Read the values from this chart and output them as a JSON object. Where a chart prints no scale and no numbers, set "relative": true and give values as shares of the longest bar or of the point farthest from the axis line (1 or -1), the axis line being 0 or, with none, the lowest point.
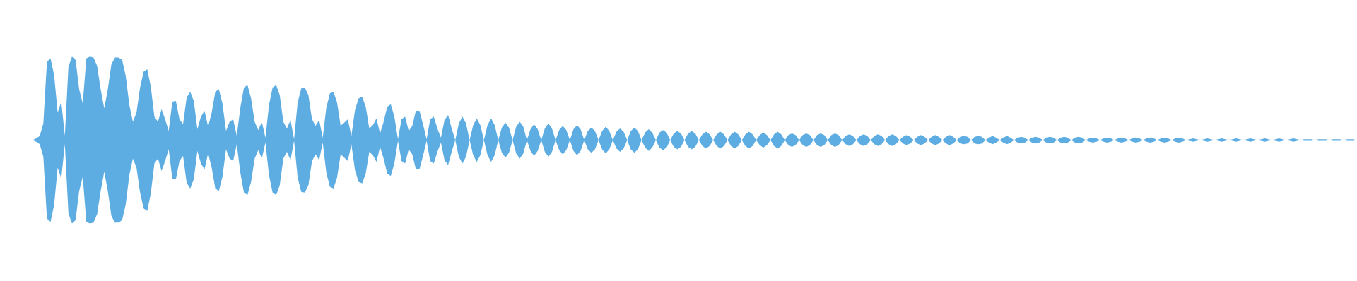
{
  "chart_data": {
    "type": "area",
    "relative": true,
    "categories": [
      null,
      null,
      null,
      null,
      null,
      null,
      null,
      null,
      null,
      null,
      null,
      null,
      null,
      null,
      null,
      null,
      null,
      null,
      null,
      null,
      null,
      null,
      null,
      null,
      null,
      null,
      null,
      null,
      null,
      null,
      null,
      null,
      null,
      null,
      null,
      null,
      null,
      null,
      null,
      null,
      null,
      null,
      null,
      null,
      null,
      null,
      null,
      null,
      null,
      null,
      null,
      null,
      null,
      null,
      null,
      null,
      null,
      null,
      null,
      null,
      null,
      null,
      null,
      null,
      null,
      null,
      null,
      null,
      null,
      null,
      null,
      null,
      null,
      null,
      null,
      null,
      null,
      null,
      null,
      null,
      null,
      null,
      null,
      null,
      null,
      null,
      null,
      null,
      null,
      null,
      null,
      null,
      null,
      null,
      null,
      null,
      null,
      null,
      null,
      null,
      null,
      null,
      null,
      null,
      null,
      null,
      null,
      null,
      null,
      null,
      null,
      null,
      null,
      null,
      null,
      null,
      null,
      null,
      null,
      null,
      null,
      null,
      null,
      null,
      null,
      null,
      null,
      null,
      null,
      null,
      null,
      null,
      null,
      null,
      null,
      null,
      null,
      null,
      null,
      null,
      null,
      null,
      null,
      null,
      null,
      null,
      null,
      null,
      null,
      null,
      null,
      null,
      null,
      null,
      null,
      null,
      null,
      null,
      null,
      null,
      null,
      null,
      null,
      null,
      null,
      null,
      null,
      null,
      null,
      null,
      null,
      null,
      null,
      null,
      null,
      null,
      null,
      null,
      null,
      null,
      null,
      null,
      null,
      null,
      null,
      null,
      null,
      null,
      null,
      null,
      null,
      null,
      null,
      null,
      null,
      null,
      null,
      null,
      null,
      null,
      null,
      null,
      null,
      null,
      null,
      null,
      null,
      null,
      null,
      null,
      null,
      null,
      null,
      null,
      null,
      null,
      null,
      null,
      null,
      null,
      null,
      null,
      null,
      null,
      null,
      null,
      null,
      null,
      null,
      null,
      null,
      null,
      null,
      null,
      null,
      null,
      null,
      null,
      null,
      null,
      null,
      null,
      null,
      null,
      null,
      null,
      null,
      null,
      null,
      null,
      null,
      null,
      null,
      null,
      null,
      null,
      null,
      null,
      null,
      null,
      null,
      null,
      null,
      null,
      null,
      null,
      null,
      null,
      null,
      null,
      null,
      null,
      null,
      null,
      null,
      null,
      null,
      null,
      null,
      null,
      null,
      null,
      null,
      null,
      null,
      null,
      null,
      null,
      null,
      null,
      null,
      null,
      null,
      null,
      null,
      null,
      null,
      null,
      null,
      null,
      null,
      null,
      null,
      null,
      null,
      null,
      null,
      null,
      null,
      null,
      null,
      null,
      null,
      null,
      null,
      null,
      null,
      null,
      null,
      null,
      null,
      null,
      null,
      null,
      null,
      null,
      null,
      null,
      null,
      null,
      null,
      null,
      null,
      null,
      null,
      null,
      null,
      null,
      null,
      null,
      null,
      null,
      null,
      null,
      null,
      null,
      null,
      null,
      null,
      null,
      null,
      null,
      null,
      null,
      null,
      null,
      null,
      null,
      null,
      null,
      null,
      null,
      null,
      null,
      null,
      null,
      null,
      null,
      null,
      null
    ],
    "series": [
      {
        "color": "#5dade2",
        "values": [
          0,
          0.02,
          0.05,
          0.2,
          0.94,
          0.98,
          0.78,
          0.33,
          0.46,
          0.05,
          0.88,
          1,
          0.96,
          0.61,
          0.44,
          0.98,
          1,
          0.99,
          0.89,
          0.61,
          0.38,
          0.61,
          0.91,
          0.99,
          0.99,
          0.96,
          0.77,
          0.42,
          0.22,
          0.33,
          0.63,
          0.82,
          0.85,
          0.64,
          0.28,
          0.22,
          0.37,
          0.25,
          0.11,
          0.46,
          0.47,
          0.25,
          0.19,
          0.51,
          0.58,
          0.47,
          0.13,
          0.28,
          0.35,
          0.16,
          0.33,
          0.58,
          0.61,
          0.44,
          0.11,
          0.22,
          0.25,
          0.05,
          0.39,
          0.63,
          0.66,
          0.5,
          0.22,
          0.12,
          0.22,
          0.03,
          0.42,
          0.63,
          0.66,
          0.54,
          0.22,
          0.14,
          0.24,
          0.01,
          0.45,
          0.62,
          0.63,
          0.54,
          0.25,
          0.17,
          0.24,
          0.03,
          0.39,
          0.56,
          0.58,
          0.45,
          0.17,
          0.21,
          0.25,
          0.05,
          0.36,
          0.5,
          0.52,
          0.4,
          0.14,
          0.18,
          0.26,
          0.08,
          0.22,
          0.4,
          0.43,
          0.28,
          0.01,
          0.25,
          0.28,
          0.11,
          0.17,
          0.35,
          0.35,
          0.19,
          0.01,
          0.25,
          0.28,
          0.14,
          0.03,
          0.24,
          0.3,
          0.14,
          0,
          0.2,
          0.28,
          0.2,
          0,
          0.18,
          0.26,
          0.18,
          0,
          0.18,
          0.26,
          0.18,
          0,
          0.15,
          0.21,
          0.15,
          0,
          0.16,
          0.22,
          0.16,
          0,
          0.13,
          0.19,
          0.13,
          0,
          0.14,
          0.2,
          0.14,
          0,
          0.12,
          0.17,
          0.12,
          0,
          0.13,
          0.18,
          0.13,
          0,
          0.11,
          0.15,
          0.11,
          0,
          0.11,
          0.16,
          0.11,
          0,
          0.1,
          0.14,
          0.1,
          0,
          0.11,
          0.15,
          0.11,
          0,
          0.09,
          0.13,
          0.09,
          0,
          0.09,
          0.12,
          0.09,
          0,
          0.08,
          0.11,
          0.08,
          0,
          0.08,
          0.11,
          0.08,
          0,
          0.07,
          0.1,
          0.07,
          0,
          0.07,
          0.1,
          0.07,
          0,
          0.07,
          0.1,
          0.07,
          0,
          0.07,
          0.1,
          0.07,
          0,
          0.06,
          0.09,
          0.06,
          0,
          0.07,
          0.1,
          0.07,
          0,
          0.06,
          0.08,
          0.06,
          0,
          0.06,
          0.08,
          0.06,
          0,
          0.06,
          0.08,
          0.06,
          0,
          0.06,
          0.08,
          0.06,
          0,
          0.05,
          0.07,
          0.05,
          0,
          0.05,
          0.07,
          0.05,
          0,
          0.05,
          0.07,
          0.05,
          0,
          0.05,
          0.07,
          0.05,
          0,
          0.04,
          0.06,
          0.04,
          0,
          0.04,
          0.06,
          0.04,
          0,
          0.04,
          0.06,
          0.04,
          0,
          0.04,
          0.06,
          0.04,
          0,
          0.04,
          0.05,
          0.04,
          0,
          0.04,
          0.05,
          0.04,
          0,
          0.03,
          0.05,
          0.03,
          0,
          0.03,
          0.05,
          0.03,
          0,
          0.03,
          0.04,
          0.03,
          0,
          0.03,
          0.04,
          0.03,
          0,
          0.03,
          0.04,
          0.03,
          0,
          0.03,
          0.04,
          0.03,
          0,
          0.03,
          0.04,
          0.03,
          0,
          0.02,
          0.03,
          0.02,
          0,
          0.02,
          0.03,
          0.02,
          0,
          0.02,
          0.03,
          0.02,
          0,
          0.02,
          0.03,
          0.02,
          0,
          0.02,
          0.03,
          0.02,
          0,
          0.02,
          0.03,
          0.02,
          0,
          0.02,
          0.03,
          0.02,
          0,
          0.01,
          0.02,
          0.01,
          0,
          0.01,
          0.02,
          0.01,
          0,
          0.01,
          0.02,
          0.01,
          0,
          0.01,
          0.02,
          0.01,
          0,
          0.01,
          0.02,
          0.01,
          0,
          0.01,
          0.02,
          0.01,
          0,
          0.01,
          0.02,
          0.01,
          0,
          0.01,
          0.02,
          0.01,
          0,
          0.01,
          0.01,
          0.01,
          0,
          0.01,
          0.01,
          0.01,
          0,
          0.01,
          0.01,
          0.01,
          0,
          0.01,
          0.01,
          0.01
        ]
      },
      {
        "color": "#5dade2",
        "values": [
          0,
          -0.02,
          -0.05,
          -0.2,
          -0.94,
          -0.98,
          -0.78,
          -0.33,
          -0.46,
          -0.05,
          -0.88,
          -1,
          -0.96,
          -0.61,
          -0.44,
          -0.98,
          -1,
          -0.99,
          -0.89,
          -0.61,
          -0.38,
          -0.61,
          -0.91,
          -0.99,
          -0.99,
          -0.96,
          -0.77,
          -0.42,
          -0.22,
          -0.33,
          -0.63,
          -0.82,
          -0.85,
          -0.64,
          -0.28,
          -0.22,
          -0.37,
          -0.25,
          -0.11,
          -0.46,
          -0.47,
          -0.25,
          -0.19,
          -0.51,
          -0.58,
          -0.47,
          -0.13,
          -0.28,
          -0.35,
          -0.16,
          -0.33,
          -0.58,
          -0.61,
          -0.44,
          -0.11,
          -0.22,
          -0.25,
          -0.05,
          -0.39,
          -0.63,
          -0.66,
          -0.5,
          -0.22,
          -0.12,
          -0.22,
          -0.03,
          -0.42,
          -0.63,
          -0.66,
          -0.54,
          -0.22,
          -0.14,
          -0.24,
          -0.01,
          -0.45,
          -0.62,
          -0.63,
          -0.54,
          -0.25,
          -0.17,
          -0.24,
          -0.03,
          -0.39,
          -0.56,
          -0.58,
          -0.45,
          -0.17,
          -0.21,
          -0.25,
          -0.05,
          -0.36,
          -0.5,
          -0.52,
          -0.4,
          -0.14,
          -0.18,
          -0.26,
          -0.08,
          -0.22,
          -0.4,
          -0.43,
          -0.28,
          -0.01,
          -0.25,
          -0.28,
          -0.11,
          -0.17,
          -0.35,
          -0.35,
          -0.19,
          -0.01,
          -0.25,
          -0.28,
          -0.14,
          -0.03,
          -0.24,
          -0.3,
          -0.14,
          0,
          -0.2,
          -0.28,
          -0.2,
          0,
          -0.18,
          -0.26,
          -0.18,
          0,
          -0.18,
          -0.26,
          -0.18,
          0,
          -0.15,
          -0.21,
          -0.15,
          0,
          -0.16,
          -0.22,
          -0.16,
          0,
          -0.13,
          -0.19,
          -0.13,
          0,
          -0.14,
          -0.2,
          -0.14,
          0,
          -0.12,
          -0.17,
          -0.12,
          0,
          -0.13,
          -0.18,
          -0.13,
          0,
          -0.11,
          -0.15,
          -0.11,
          0,
          -0.11,
          -0.16,
          -0.11,
          0,
          -0.1,
          -0.14,
          -0.1,
          0,
          -0.11,
          -0.15,
          -0.11,
          0,
          -0.09,
          -0.13,
          -0.09,
          0,
          -0.09,
          -0.12,
          -0.09,
          0,
          -0.08,
          -0.11,
          -0.08,
          0,
          -0.08,
          -0.11,
          -0.08,
          0,
          -0.07,
          -0.1,
          -0.07,
          0,
          -0.07,
          -0.1,
          -0.07,
          0,
          -0.07,
          -0.1,
          -0.07,
          0,
          -0.07,
          -0.1,
          -0.07,
          0,
          -0.06,
          -0.09,
          -0.06,
          0,
          -0.07,
          -0.1,
          -0.07,
          0,
          -0.06,
          -0.08,
          -0.06,
          0,
          -0.06,
          -0.08,
          -0.06,
          0,
          -0.06,
          -0.08,
          -0.06,
          0,
          -0.06,
          -0.08,
          -0.06,
          0,
          -0.05,
          -0.07,
          -0.05,
          0,
          -0.05,
          -0.07,
          -0.05,
          0,
          -0.05,
          -0.07,
          -0.05,
          0,
          -0.05,
          -0.07,
          -0.05,
          0,
          -0.04,
          -0.06,
          -0.04,
          0,
          -0.04,
          -0.06,
          -0.04,
          0,
          -0.04,
          -0.06,
          -0.04,
          0,
          -0.04,
          -0.06,
          -0.04,
          0,
          -0.04,
          -0.05,
          -0.04,
          0,
          -0.04,
          -0.05,
          -0.04,
          0,
          -0.03,
          -0.05,
          -0.03,
          0,
          -0.03,
          -0.05,
          -0.03,
          0,
          -0.03,
          -0.04,
          -0.03,
          0,
          -0.03,
          -0.04,
          -0.03,
          0,
          -0.03,
          -0.04,
          -0.03,
          0,
          -0.03,
          -0.04,
          -0.03,
          0,
          -0.03,
          -0.04,
          -0.03,
          0,
          -0.02,
          -0.03,
          -0.02,
          0,
          -0.02,
          -0.03,
          -0.02,
          0,
          -0.02,
          -0.03,
          -0.02,
          0,
          -0.02,
          -0.03,
          -0.02,
          0,
          -0.02,
          -0.03,
          -0.02,
          0,
          -0.02,
          -0.03,
          -0.02,
          0,
          -0.02,
          -0.03,
          -0.02,
          0,
          -0.01,
          -0.02,
          -0.01,
          0,
          -0.01,
          -0.02,
          -0.01,
          0,
          -0.01,
          -0.02,
          -0.01,
          0,
          -0.01,
          -0.02,
          -0.01,
          0,
          -0.01,
          -0.02,
          -0.01,
          0,
          -0.01,
          -0.02,
          -0.01,
          0,
          -0.01,
          -0.02,
          -0.01,
          0,
          -0.01,
          -0.02,
          -0.01,
          0,
          -0.01,
          -0.01,
          -0.01,
          0,
          -0.01,
          -0.01,
          -0.01,
          0,
          -0.01,
          -0.01,
          -0.01,
          0,
          -0.01,
          -0.01,
          -0.01
        ]
      }
    ]
  }
}
